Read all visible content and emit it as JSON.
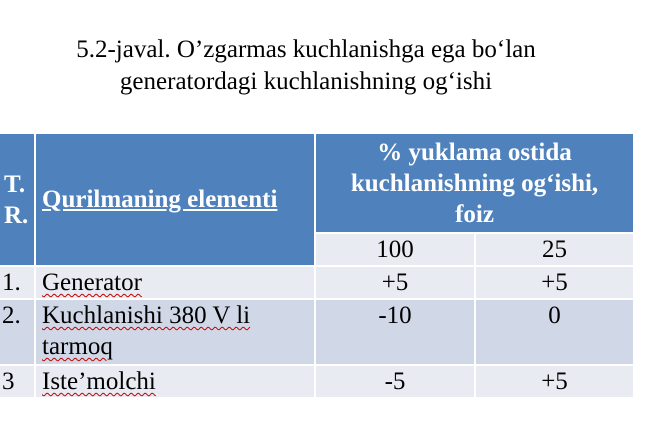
{
  "title": {
    "line1": "5.2-javal. O’zgarmas kuchlanishga ega bo‘lan",
    "line2": "generatordagi kuchlanishning og‘ishi"
  },
  "table": {
    "header": {
      "num_line1": "T.",
      "num_line2": "R.",
      "element": "Qurilmaning elementi",
      "pct_line1": "% yuklama ostida",
      "pct_line2": "kuchlanishning og‘ishi,",
      "pct_line3": "foiz",
      "load_100": "100",
      "load_25": "25"
    },
    "rows": [
      {
        "num": "1.",
        "element_line1": "Generator",
        "element_line2": "",
        "v100": "+5",
        "v25": "+5"
      },
      {
        "num": "2.",
        "element_line1": "Kuchlanishi 380 V li",
        "element_line2": "tarmoq",
        "v100": "-10",
        "v25": "0"
      },
      {
        "num": "3",
        "element_line1": "Iste’molchi",
        "element_line2": "",
        "v100": "-5",
        "v25": "+5"
      }
    ]
  }
}
